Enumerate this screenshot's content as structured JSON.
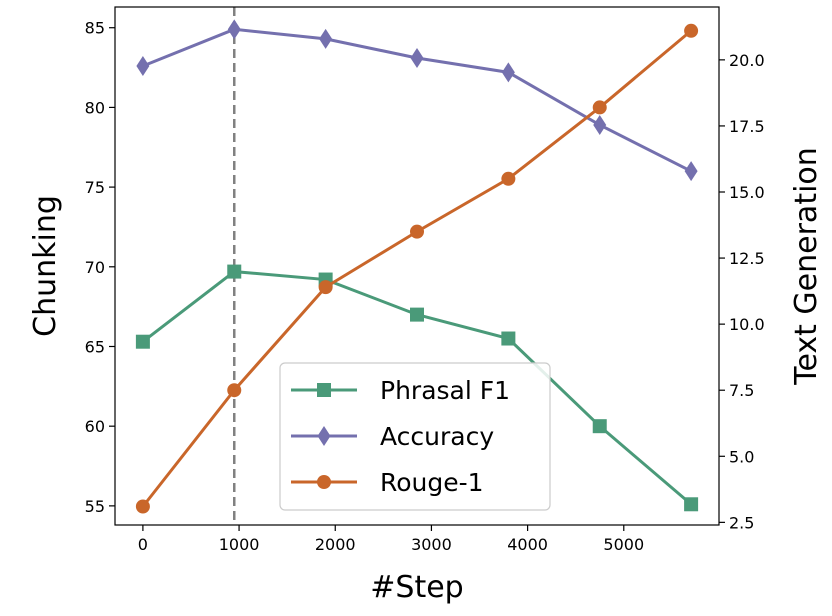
{
  "chart_data": {
    "type": "line",
    "xlabel": "#Step",
    "ylabel_left": "Chunking",
    "ylabel_right": "Text Generation",
    "x_ticks": [
      "0",
      "1000",
      "2000",
      "3000",
      "4000",
      "5000"
    ],
    "y_left_ticks": [
      "55",
      "60",
      "65",
      "70",
      "75",
      "80",
      "85"
    ],
    "y_right_ticks": [
      "2.5",
      "5.0",
      "7.5",
      "10.0",
      "12.5",
      "15.0",
      "17.5",
      "20.0"
    ],
    "xlim": [
      -290,
      5990
    ],
    "ylim_left": [
      53.8,
      86.3
    ],
    "ylim_right": [
      2.4,
      22.0
    ],
    "vline_x": 950,
    "vline_color": "#808080",
    "grid": false,
    "legend_position": "lower center",
    "series": [
      {
        "name": "Phrasal F1",
        "axis": "left",
        "color": "#4a9a79",
        "marker": "square",
        "x": [
          0,
          950,
          1900,
          2850,
          3800,
          4750,
          5700
        ],
        "y": [
          65.3,
          69.7,
          69.2,
          67.0,
          65.5,
          60.0,
          55.1
        ]
      },
      {
        "name": "Accuracy",
        "axis": "left",
        "color": "#7470ae",
        "marker": "diamond",
        "x": [
          0,
          950,
          1900,
          2850,
          3800,
          4750,
          5700
        ],
        "y": [
          82.6,
          84.9,
          84.3,
          83.1,
          82.2,
          78.9,
          76.0
        ]
      },
      {
        "name": "Rouge-1",
        "axis": "right",
        "color": "#c9662a",
        "marker": "circle",
        "x": [
          0,
          950,
          1900,
          2850,
          3800,
          4750,
          5700
        ],
        "y": [
          3.1,
          7.5,
          11.4,
          13.5,
          15.5,
          18.2,
          21.1
        ]
      }
    ]
  }
}
